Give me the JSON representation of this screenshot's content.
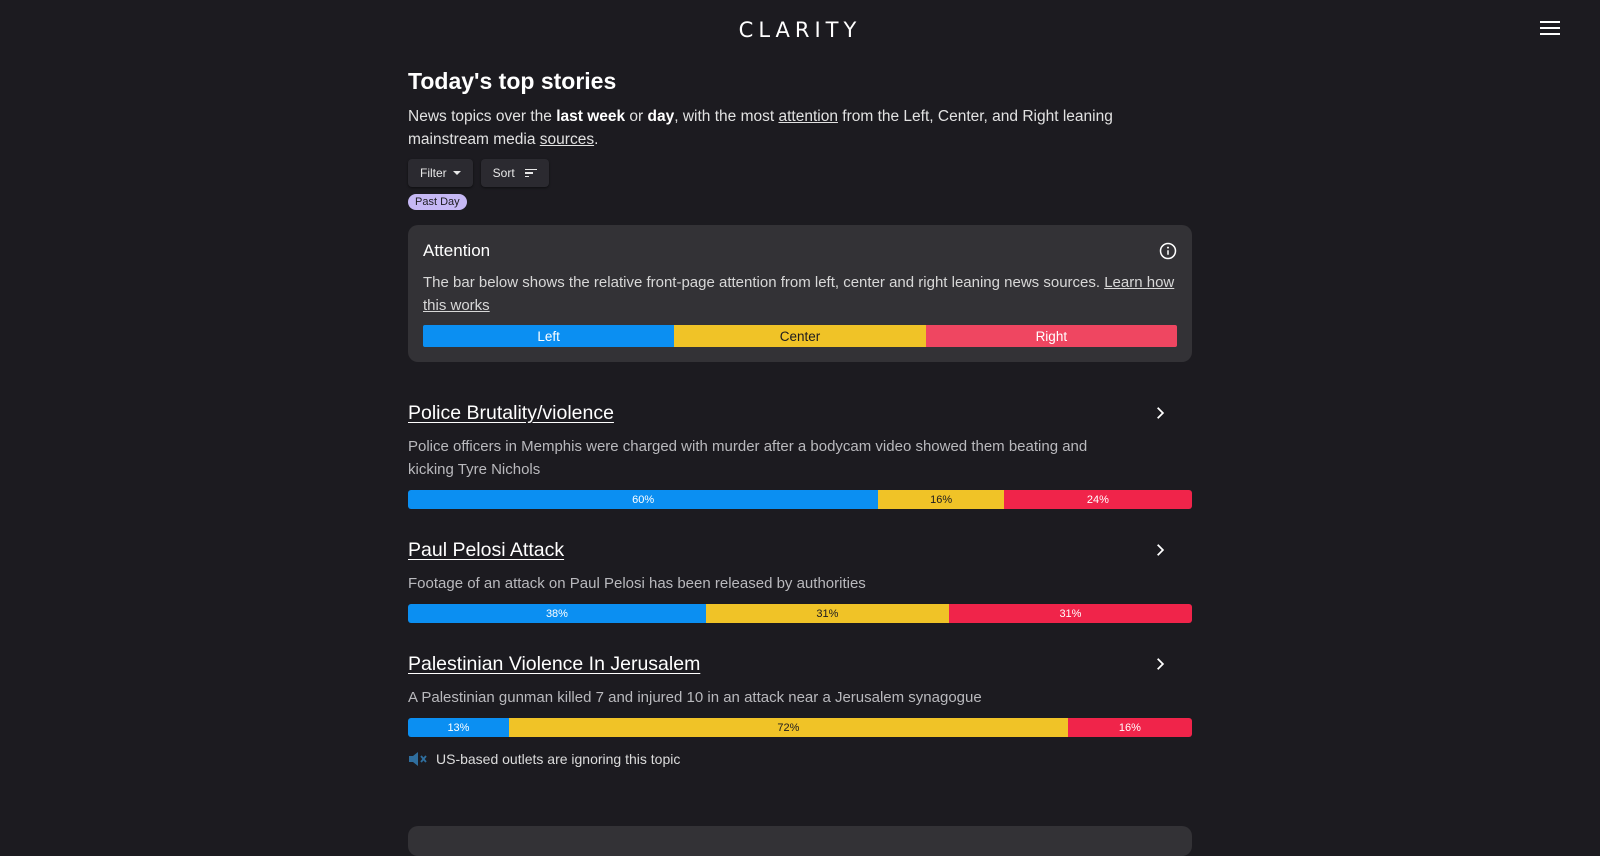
{
  "header": {
    "logo": "CLARITY",
    "menu_icon": "hamburger-menu-icon"
  },
  "page": {
    "title": "Today's top stories",
    "intro": {
      "part1": "News topics over the ",
      "bold1": "last week",
      "part2": " or ",
      "bold2": "day",
      "part3": ", with the most ",
      "link1": "attention",
      "part4": " from the Left, Center, and Right leaning mainstream media ",
      "link2": "sources",
      "part5": "."
    }
  },
  "controls": {
    "filter_label": "Filter",
    "sort_label": "Sort",
    "active_chip": "Past Day"
  },
  "attention_card": {
    "title": "Attention",
    "text": "The bar below shows the relative front-page attention from left, center and right leaning news sources. ",
    "link": "Learn how this works",
    "legend": {
      "left": "Left",
      "center": "Center",
      "right": "Right"
    }
  },
  "colors": {
    "left": "#0b8ff2",
    "center": "#f0c327",
    "right": "#f0244a",
    "legend_right": "#ef4661"
  },
  "stories": [
    {
      "title": "Police Brutality/violence",
      "description": "Police officers in Memphis were charged with murder after a bodycam video showed them beating and kicking Tyre Nichols",
      "left": 60,
      "center": 16,
      "right": 24,
      "left_label": "60%",
      "center_label": "16%",
      "right_label": "24%"
    },
    {
      "title": "Paul Pelosi Attack",
      "description": "Footage of an attack on Paul Pelosi has been released by authorities",
      "left": 38,
      "center": 31,
      "right": 31,
      "left_label": "38%",
      "center_label": "31%",
      "right_label": "31%"
    },
    {
      "title": "Palestinian Violence In Jerusalem",
      "description": "A Palestinian gunman killed 7 and injured 10 in an attack near a Jerusalem synagogue",
      "left": 13,
      "center": 72,
      "right": 16,
      "left_label": "13%",
      "center_label": "72%",
      "right_label": "16%",
      "note": "US-based outlets are ignoring this topic"
    }
  ]
}
